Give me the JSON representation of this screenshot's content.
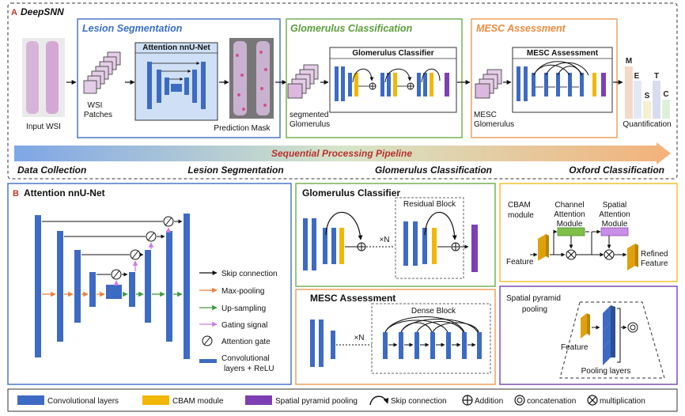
{
  "panel_a": {
    "letter": "A",
    "title": "DeepSNN",
    "input_label": "Input WSI",
    "lesion": {
      "title": "Lesion Segmentation",
      "net_title": "Attention nnU-Net",
      "patches_label_1": "WSI",
      "patches_label_2": "Patches",
      "mask_label": "Prediction Mask"
    },
    "glom": {
      "title": "Glomerulus Classification",
      "classifier_title": "Glomerulus Classifier",
      "seg_label_1": "segmented",
      "seg_label_2": "Glomerulus"
    },
    "mesc": {
      "title": "MESC Assessment",
      "block_title": "MESC Assessment",
      "label_1": "MESC",
      "label_2": "Glomerulus"
    },
    "quant": {
      "letters": [
        "M",
        "E",
        "S",
        "T",
        "C"
      ],
      "colors": [
        "#f3d9c7",
        "#e3e8f6",
        "#f7efcf",
        "#d7dcef",
        "#dff0d9"
      ],
      "label": "Quantification"
    },
    "pipeline_label": "Sequential Processing Pipeline",
    "stages": [
      "Data Collection",
      "Lesion Segmentation",
      "Glomerulus Classification",
      "Oxford Classification"
    ]
  },
  "panel_b": {
    "letter": "B",
    "title": "Attention nnU-Net",
    "legend": [
      {
        "label": "Skip connection",
        "color": "#111111"
      },
      {
        "label": "Max-pooling",
        "color": "#f07f3a"
      },
      {
        "label": "Up-sampling",
        "color": "#3f9a3f"
      },
      {
        "label": "Gating signal",
        "color": "#d07ae8"
      },
      {
        "label": "Attention gate",
        "color": "#111111"
      },
      {
        "label": "Convolutional",
        "color": "#3d6bc4"
      },
      {
        "label": "layers + ReLU",
        "color": "#3d6bc4"
      }
    ]
  },
  "glom_classifier": {
    "title": "Glomerulus Classifier",
    "block_label": "Residual Block",
    "repeat": "×N"
  },
  "mesc_assessment": {
    "title": "MESC Assessment",
    "block_label": "Dense Block",
    "repeat": "×N"
  },
  "cbam": {
    "title_1": "CBAM",
    "title_2": "module",
    "channel_1": "Channel",
    "channel_2": "Attention",
    "channel_3": "Module",
    "spatial_1": "Spatial",
    "spatial_2": "Attention",
    "spatial_3": "Module",
    "feature_in": "Feature",
    "out_1": "Refined",
    "out_2": "Feature"
  },
  "spp": {
    "title_1": "Spatial pyramid",
    "title_2": "pooling",
    "feature": "Feature",
    "layers": "Pooling layers"
  },
  "bottom_legend": {
    "conv": "Convolutional layers",
    "cbam": "CBAM module",
    "spp": "Spatial pyramid pooling",
    "skip": "Skip connection",
    "add": "Addition",
    "concat": "concatenation",
    "mult": "multiplication"
  },
  "colors": {
    "conv": "#3d6bc4",
    "cbam": "#f2b705",
    "spp": "#7e3fb3",
    "lesion_border": "#4a78c8",
    "glom_border": "#77b255",
    "mesc_border": "#f0a060",
    "violet_border": "#7d4fb0",
    "yellow_border": "#f2c230"
  }
}
